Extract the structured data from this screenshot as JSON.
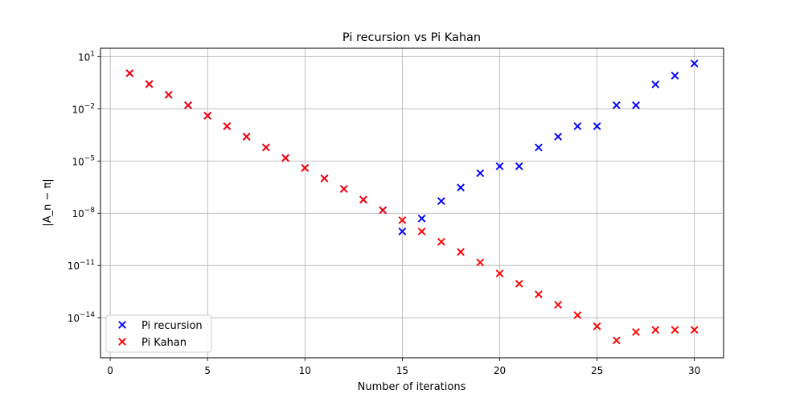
{
  "chart_data": {
    "type": "scatter",
    "title": "Pi recursion vs Pi Kahan",
    "xlabel": "Number of iterations",
    "ylabel": "|A_n − π|",
    "y_scale": "log",
    "xlim": [
      -0.5,
      31.5
    ],
    "ylim": [
      5e-17,
      30
    ],
    "x_ticks": [
      0,
      5,
      10,
      15,
      20,
      25,
      30
    ],
    "y_ticks": [
      {
        "value": 10,
        "base": "10",
        "exp": "1"
      },
      {
        "value": 0.01,
        "base": "10",
        "exp": "−2"
      },
      {
        "value": 1e-05,
        "base": "10",
        "exp": "−5"
      },
      {
        "value": 1e-08,
        "base": "10",
        "exp": "−8"
      },
      {
        "value": 1e-11,
        "base": "10",
        "exp": "−11"
      },
      {
        "value": 1e-14,
        "base": "10",
        "exp": "−14"
      }
    ],
    "grid": true,
    "legend_position": "lower-left",
    "marker": "x",
    "series": [
      {
        "name": "Pi recursion",
        "color": "#0000ff",
        "x": [
          1,
          2,
          3,
          4,
          5,
          6,
          7,
          8,
          9,
          10,
          11,
          12,
          13,
          14,
          15,
          16,
          17,
          18,
          19,
          20,
          21,
          22,
          23,
          24,
          25,
          26,
          27,
          28,
          29,
          30
        ],
        "y": [
          1.1,
          0.26,
          0.064,
          0.016,
          0.004,
          0.001,
          0.00025,
          6e-05,
          1.5e-05,
          4e-06,
          1e-06,
          2.5e-07,
          6e-08,
          1.5e-08,
          9e-10,
          5e-09,
          5e-08,
          3e-07,
          2e-06,
          5e-06,
          5e-06,
          6e-05,
          0.00025,
          0.001,
          0.001,
          0.016,
          0.016,
          0.25,
          0.8,
          4
        ]
      },
      {
        "name": "Pi Kahan",
        "color": "#ff0000",
        "x": [
          1,
          2,
          3,
          4,
          5,
          6,
          7,
          8,
          9,
          10,
          11,
          12,
          13,
          14,
          15,
          16,
          17,
          18,
          19,
          20,
          21,
          22,
          23,
          24,
          25,
          26,
          27,
          28,
          29,
          30
        ],
        "y": [
          1.1,
          0.26,
          0.064,
          0.016,
          0.004,
          0.001,
          0.00025,
          6e-05,
          1.5e-05,
          4e-06,
          1e-06,
          2.5e-07,
          6e-08,
          1.5e-08,
          4e-09,
          9e-10,
          2.3e-10,
          6e-11,
          1.5e-11,
          3.5e-12,
          9e-13,
          2.2e-13,
          5.5e-14,
          1.4e-14,
          3.2e-15,
          5e-16,
          1.5e-15,
          2e-15,
          2e-15,
          2e-15
        ]
      }
    ]
  }
}
